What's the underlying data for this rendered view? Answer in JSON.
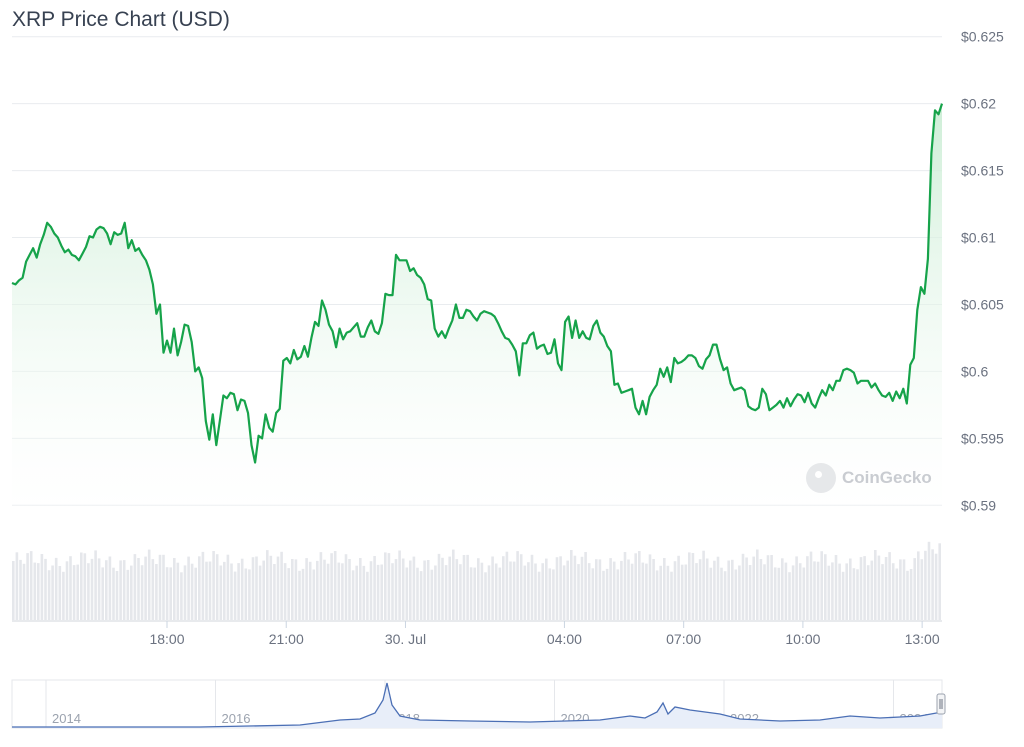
{
  "header": {
    "title": "XRP Price Chart (USD)"
  },
  "watermark": {
    "text": "CoinGecko"
  },
  "colors": {
    "line": "#16a34a",
    "area_top": "#c8ecd2",
    "volume": "#e5e7eb",
    "navigator": "#4b6fb5",
    "grid": "#e9ecef",
    "axis_text": "#6b7280"
  },
  "chart_data": {
    "type": "area",
    "title": "XRP Price Chart (USD)",
    "xlabel": "",
    "ylabel": "",
    "y_ticks": [
      "$0.625",
      "$0.62",
      "$0.615",
      "$0.61",
      "$0.605",
      "$0.6",
      "$0.595",
      "$0.59"
    ],
    "y_tick_values": [
      0.625,
      0.62,
      0.615,
      0.61,
      0.605,
      0.6,
      0.595,
      0.59
    ],
    "ylim": [
      0.5895,
      0.6255
    ],
    "x_ticks": [
      "18:00",
      "21:00",
      "30. Jul",
      "04:00",
      "07:00",
      "10:00",
      "13:00"
    ],
    "x_tick_hours": [
      18,
      21,
      24,
      28,
      31,
      34,
      37
    ],
    "xlim_hours": [
      14.1,
      37.5
    ],
    "grid": true,
    "series": [
      {
        "values": [
          0.6066,
          0.6065,
          0.6068,
          0.607,
          0.6082,
          0.6087,
          0.6092,
          0.6085,
          0.6095,
          0.6102,
          0.6111,
          0.6108,
          0.6103,
          0.61,
          0.6094,
          0.6089,
          0.6091,
          0.6087,
          0.6086,
          0.6083,
          0.6088,
          0.6093,
          0.6101,
          0.61,
          0.6106,
          0.6108,
          0.6107,
          0.6103,
          0.6095,
          0.6104,
          0.6102,
          0.6103,
          0.6111,
          0.6092,
          0.6098,
          0.609,
          0.6092,
          0.6087,
          0.6083,
          0.6076,
          0.6065,
          0.6043,
          0.605,
          0.6014,
          0.6023,
          0.6014,
          0.6032,
          0.6012,
          0.6022,
          0.6035,
          0.6034,
          0.6022,
          0.6,
          0.6003,
          0.5995,
          0.5963,
          0.5949,
          0.5968,
          0.5945,
          0.5963,
          0.5982,
          0.598,
          0.5984,
          0.5983,
          0.5971,
          0.5979,
          0.5978,
          0.5969,
          0.5945,
          0.5932,
          0.5952,
          0.595,
          0.5968,
          0.5958,
          0.5955,
          0.5969,
          0.5972,
          0.6008,
          0.601,
          0.6006,
          0.6016,
          0.6009,
          0.6011,
          0.6019,
          0.6011,
          0.6025,
          0.6037,
          0.6034,
          0.6053,
          0.6046,
          0.6035,
          0.603,
          0.6018,
          0.6032,
          0.6024,
          0.6029,
          0.603,
          0.6033,
          0.6036,
          0.6026,
          0.6026,
          0.6033,
          0.6038,
          0.603,
          0.6028,
          0.6036,
          0.6058,
          0.6057,
          0.6057,
          0.6087,
          0.6083,
          0.6083,
          0.6083,
          0.6075,
          0.6077,
          0.6072,
          0.607,
          0.6065,
          0.6054,
          0.6053,
          0.6032,
          0.6026,
          0.603,
          0.6025,
          0.6032,
          0.6038,
          0.605,
          0.604,
          0.604,
          0.6046,
          0.6045,
          0.6041,
          0.6038,
          0.6043,
          0.6045,
          0.6044,
          0.6043,
          0.6041,
          0.6036,
          0.603,
          0.6025,
          0.6024,
          0.602,
          0.6015,
          0.5997,
          0.6021,
          0.6021,
          0.6027,
          0.6029,
          0.6017,
          0.6019,
          0.602,
          0.6013,
          0.6014,
          0.6024,
          0.6006,
          0.6001,
          0.6037,
          0.6041,
          0.6025,
          0.6038,
          0.6025,
          0.603,
          0.6025,
          0.6024,
          0.6034,
          0.6038,
          0.6029,
          0.6026,
          0.6019,
          0.6015,
          0.599,
          0.5991,
          0.5984,
          0.5985,
          0.5986,
          0.5987,
          0.5973,
          0.5968,
          0.5978,
          0.5968,
          0.5981,
          0.5986,
          0.599,
          0.6002,
          0.5996,
          0.6003,
          0.5992,
          0.601,
          0.6006,
          0.6007,
          0.6009,
          0.6012,
          0.6012,
          0.601,
          0.6004,
          0.6002,
          0.6009,
          0.6012,
          0.602,
          0.602,
          0.6009,
          0.6001,
          0.6003,
          0.5991,
          0.5986,
          0.5987,
          0.5988,
          0.5986,
          0.5974,
          0.5972,
          0.5971,
          0.5973,
          0.5987,
          0.5983,
          0.5971,
          0.5973,
          0.5975,
          0.5978,
          0.5973,
          0.598,
          0.5974,
          0.5979,
          0.5983,
          0.5982,
          0.5977,
          0.5984,
          0.5976,
          0.5973,
          0.598,
          0.5986,
          0.5982,
          0.599,
          0.5986,
          0.5993,
          0.5993,
          0.6001,
          0.6002,
          0.6001,
          0.5999,
          0.5991,
          0.5993,
          0.5993,
          0.5993,
          0.5988,
          0.5991,
          0.5986,
          0.5982,
          0.5981,
          0.5984,
          0.5978,
          0.5985,
          0.598,
          0.5987,
          0.5976,
          0.6005,
          0.601,
          0.6046,
          0.6063,
          0.6058,
          0.6084,
          0.6163,
          0.6195,
          0.6192,
          0.62
        ]
      }
    ],
    "navigator": {
      "x_ticks": [
        "2014",
        "2016",
        "2018",
        "2020",
        "2022",
        "2024"
      ]
    }
  }
}
